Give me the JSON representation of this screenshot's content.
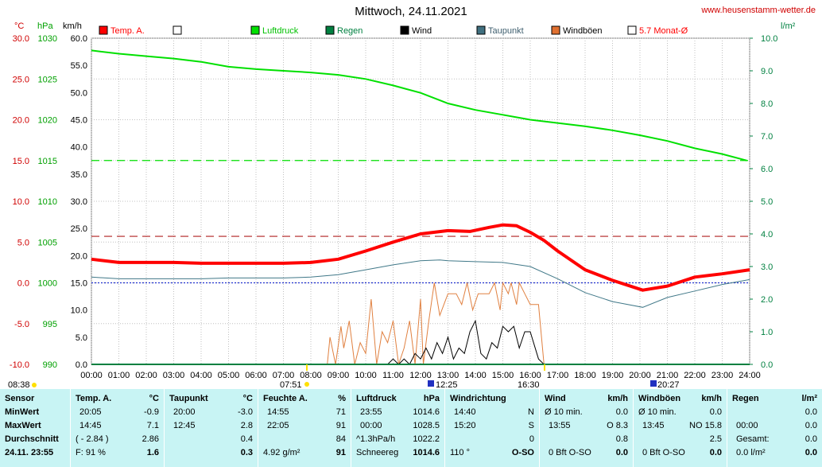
{
  "title": "Mittwoch, 24.11.2021",
  "site": "www.heusenstamm-wetter.de",
  "axes": {
    "temp_unit": "°C",
    "hpa_unit": "hPa",
    "kmh_unit": "km/h",
    "rain_unit": "l/m²",
    "temp_ticks": [
      "30.0",
      "25.0",
      "20.0",
      "15.0",
      "10.0",
      "5.0",
      "0.0",
      "-5.0",
      "-10.0"
    ],
    "hpa_ticks": [
      "1030",
      "1025",
      "1020",
      "1015",
      "1010",
      "1005",
      "1000",
      "995",
      "990"
    ],
    "kmh_ticks": [
      "60.0",
      "55.0",
      "50.0",
      "45.0",
      "40.0",
      "35.0",
      "30.0",
      "25.0",
      "20.0",
      "15.0",
      "10.0",
      "5.0",
      "0.0"
    ],
    "rain_ticks": [
      "10.0",
      "9.0",
      "8.0",
      "7.0",
      "6.0",
      "5.0",
      "4.0",
      "3.0",
      "2.0",
      "1.0",
      "0.0"
    ],
    "x_ticks": [
      "00:00",
      "01:00",
      "02:00",
      "03:00",
      "04:00",
      "05:00",
      "06:00",
      "07:00",
      "08:00",
      "09:00",
      "10:00",
      "11:00",
      "12:00",
      "13:00",
      "14:00",
      "15:00",
      "16:00",
      "17:00",
      "18:00",
      "19:00",
      "20:00",
      "21:00",
      "22:00",
      "23:00",
      "24:00"
    ]
  },
  "legend": [
    {
      "label": "Temp. A.",
      "color": "#ff0000",
      "text_color": "#ff0000"
    },
    {
      "label": "",
      "color": "#ffffff",
      "text_color": "#000000"
    },
    {
      "label": "Luftdruck",
      "color": "#00e000",
      "text_color": "#00c000"
    },
    {
      "label": "Regen",
      "color": "#008040",
      "text_color": "#008040"
    },
    {
      "label": "Wind",
      "color": "#000000",
      "text_color": "#000000"
    },
    {
      "label": "Taupunkt",
      "color": "#407080",
      "text_color": "#406070"
    },
    {
      "label": "Windböen",
      "color": "#e07030",
      "text_color": "#000000"
    },
    {
      "label": "5.7 Monat-Ø",
      "color": "#ffffff",
      "text_color": "#ff0000"
    }
  ],
  "sun_markers": {
    "sunrise_top": "07:51",
    "sunset_top": "16:30",
    "sunrise_bottom": "08:38",
    "moonset": "12:25",
    "moonrise": "20:27"
  },
  "chart_data": {
    "type": "line",
    "x_range": [
      0,
      24
    ],
    "temp_range": [
      -10,
      30
    ],
    "reference_lines": {
      "temp_month_avg": 5.7,
      "pressure_ref": 1015,
      "zero_line": 0.0
    },
    "series": [
      {
        "name": "Temp. A.",
        "x": [
          0,
          1,
          2,
          3,
          4,
          5,
          6,
          7,
          8,
          9,
          10,
          11,
          12,
          13,
          13.8,
          14.5,
          15,
          15.5,
          16,
          16.5,
          17,
          18,
          19,
          20.1,
          21,
          22,
          23,
          24
        ],
        "y": [
          2.9,
          2.5,
          2.5,
          2.5,
          2.4,
          2.4,
          2.4,
          2.4,
          2.5,
          2.9,
          3.9,
          5.0,
          6.0,
          6.4,
          6.3,
          6.8,
          7.1,
          7.0,
          6.2,
          5.2,
          3.9,
          1.6,
          0.3,
          -0.9,
          -0.4,
          0.7,
          1.1,
          1.6
        ]
      },
      {
        "name": "Luftdruck",
        "x": [
          0,
          1,
          2,
          3,
          4,
          5,
          6,
          7,
          8,
          9,
          10,
          11,
          12,
          13,
          14,
          15,
          16,
          17,
          18,
          19,
          20,
          21,
          22,
          23,
          23.9
        ],
        "y": [
          1028.5,
          1028.1,
          1027.8,
          1027.5,
          1027.1,
          1026.5,
          1026.2,
          1026.0,
          1025.8,
          1025.5,
          1025.0,
          1024.2,
          1023.3,
          1022.0,
          1021.2,
          1020.6,
          1020.0,
          1019.6,
          1019.2,
          1018.7,
          1018.1,
          1017.4,
          1016.5,
          1015.8,
          1015.0
        ]
      },
      {
        "name": "Taupunkt",
        "x": [
          0,
          1,
          2,
          3,
          4,
          5,
          6,
          7,
          8,
          9,
          10,
          11,
          12,
          12.7,
          13,
          14,
          15,
          16,
          17,
          18,
          19,
          20.1,
          21,
          22,
          23,
          24
        ],
        "y": [
          0.7,
          0.5,
          0.5,
          0.5,
          0.5,
          0.6,
          0.6,
          0.6,
          0.7,
          1.0,
          1.6,
          2.2,
          2.7,
          2.8,
          2.7,
          2.6,
          2.5,
          2.0,
          0.5,
          -1.2,
          -2.3,
          -3.0,
          -1.8,
          -1.0,
          -0.2,
          0.4
        ]
      },
      {
        "name": "Windböen",
        "x": [
          0,
          8.6,
          8.7,
          8.9,
          9.1,
          9.2,
          9.4,
          9.6,
          9.8,
          10.0,
          10.2,
          10.4,
          10.6,
          10.8,
          11.0,
          11.2,
          11.4,
          11.6,
          11.8,
          12.0,
          12.1,
          12.3,
          12.5,
          12.7,
          13.0,
          13.3,
          13.5,
          13.7,
          13.9,
          14.1,
          14.3,
          14.5,
          14.7,
          14.9,
          15.0,
          15.2,
          15.3,
          15.5,
          15.6,
          15.8,
          16.0,
          16.3,
          16.5,
          24
        ],
        "y": [
          0,
          0,
          5,
          0,
          7,
          3,
          8,
          0,
          4,
          2,
          12,
          0,
          6,
          4,
          8,
          0,
          3,
          8,
          0,
          12,
          0,
          8,
          15,
          9,
          13,
          13,
          11,
          15,
          10,
          13,
          13,
          13,
          15,
          10,
          15,
          13,
          15,
          11,
          15,
          13,
          11,
          11,
          0,
          0
        ]
      },
      {
        "name": "Wind",
        "x": [
          0,
          10.8,
          11.0,
          11.2,
          11.4,
          11.6,
          11.8,
          12.0,
          12.2,
          12.4,
          12.6,
          12.8,
          13.0,
          13.2,
          13.4,
          13.6,
          13.8,
          14.0,
          14.2,
          14.4,
          14.6,
          14.8,
          15.0,
          15.2,
          15.4,
          15.6,
          15.8,
          16.0,
          16.3,
          16.5,
          24
        ],
        "y": [
          0,
          0,
          1,
          0,
          1,
          0,
          2,
          1,
          3,
          1,
          4,
          2,
          5,
          1,
          3,
          2,
          6,
          8,
          2,
          1,
          4,
          3,
          7,
          6,
          7,
          3,
          6,
          6,
          1,
          0,
          0
        ]
      },
      {
        "name": "Regen",
        "x": [
          0,
          24
        ],
        "y": [
          0,
          0
        ]
      }
    ]
  },
  "stats": {
    "sensor": {
      "head": "Sensor",
      "min": "MinWert",
      "max": "MaxWert",
      "avg": "Durchschnitt",
      "date": "24.11. 23:55"
    },
    "temp": {
      "head": "Temp. A.",
      "unit": "°C",
      "min_t": "20:05",
      "min_v": "-0.9",
      "max_t": "14:45",
      "max_v": "7.1",
      "avg_a": "( - 2.84 )",
      "avg_b": "2.86",
      "cur_a": "F: 91 %",
      "cur_b": "1.6"
    },
    "dew": {
      "head": "Taupunkt",
      "unit": "°C",
      "min_t": "20:00",
      "min_v": "-3.0",
      "max_t": "12:45",
      "max_v": "2.8",
      "avg": "0.4",
      "cur": "0.3"
    },
    "hum": {
      "head": "Feuchte A.",
      "unit": "%",
      "min_t": "14:55",
      "min_v": "71",
      "max_t": "22:05",
      "max_v": "91",
      "avg": "84",
      "cur_a": "4.92 g/m²",
      "cur_b": "91"
    },
    "press": {
      "head": "Luftdruck",
      "unit": "hPa",
      "min_t": "23:55",
      "min_v": "1014.6",
      "max_t": "00:00",
      "max_v": "1028.5",
      "avg_a": "^1.3hPa/h",
      "avg_b": "1022.2",
      "cur_a": "Schneereg",
      "cur_b": "1014.6"
    },
    "dir": {
      "head": "Windrichtung",
      "min_t": "14:40",
      "min_v": "N",
      "max_t": "15:20",
      "max_v": "S",
      "avg": "0",
      "cur_a": "110 °",
      "cur_b": "O-SO"
    },
    "wind": {
      "head": "Wind",
      "unit": "km/h",
      "min_t": "Ø 10 min.",
      "min_v": "0.0",
      "max_t": "13:55",
      "max_v": "O 8.3",
      "avg": "0.8",
      "cur_a": "0 Bft O-SO",
      "cur_b": "0.0"
    },
    "gust": {
      "head": "Windböen",
      "unit": "km/h",
      "min_t": "Ø 10 min.",
      "min_v": "0.0",
      "max_t": "13:45",
      "max_v": "NO 15.8",
      "avg": "2.5",
      "cur_a": "0 Bft O-SO",
      "cur_b": "0.0"
    },
    "rain": {
      "head": "Regen",
      "unit": "l/m²",
      "min_t": "",
      "min_v": "0.0",
      "max_t": "00:00",
      "max_v": "0.0",
      "avg_a": "Gesamt:",
      "avg_b": "0.0",
      "cur_a": "0.0 l/m²",
      "cur_b": "0.0"
    }
  }
}
